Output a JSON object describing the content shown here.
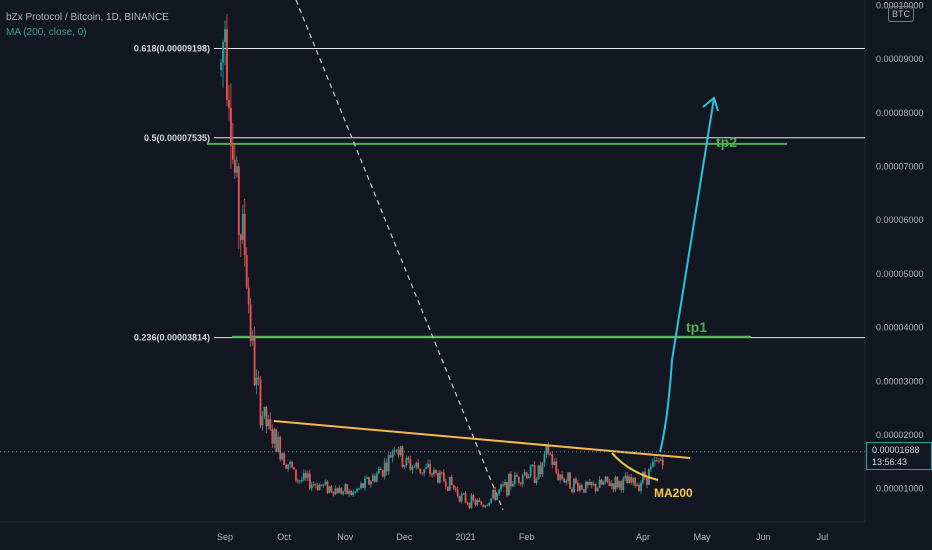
{
  "legend": {
    "symbol_line": "bZx Protocol / Bitcoin, 1D, BINANCE",
    "ma_line": "MA (200, close, 0)"
  },
  "currency_badge": "BTC",
  "last_price": {
    "value": "0.00001688",
    "countdown": "13:56:43"
  },
  "colors": {
    "background": "#131722",
    "up": "#26a69a",
    "down": "#ef5350",
    "fib_line": "#e8e8e8",
    "target_line": "#4caf50",
    "trendline": "#f7b84b",
    "projection": "#26c6da",
    "ma": "#f7c948"
  },
  "chart_data": {
    "type": "candlestick",
    "title": "bZx Protocol / Bitcoin, 1D, BINANCE",
    "y_ticks": [
      "0.00009000",
      "0.00008000",
      "0.00007000",
      "0.00006000",
      "0.00005000",
      "0.00004000",
      "0.00003000",
      "0.00002000",
      "0.00001000"
    ],
    "y_tick_partial_top": "0.00010000",
    "x_ticks": [
      "Sep",
      "Oct",
      "Nov",
      "Dec",
      "2021",
      "Feb",
      "Apr",
      "May",
      "Jun",
      "Jul"
    ],
    "ylim": [
      3.8e-06,
      0.000101
    ],
    "fib_levels": [
      {
        "ratio": 0.618,
        "label": "0.618(0.00009198)",
        "price": 9.198e-05
      },
      {
        "ratio": 0.5,
        "label": "0.5(0.00007535)",
        "price": 7.535e-05
      },
      {
        "ratio": 0.236,
        "label": "0.236(0.00003814)",
        "price": 3.814e-05
      }
    ],
    "targets": [
      {
        "name": "tp2",
        "price": 7.42e-05
      },
      {
        "name": "tp1",
        "price": 3.83e-05
      }
    ],
    "ma_label": "MA200",
    "last_price": 1.688e-05,
    "price_path": [
      {
        "date": "2020-08-30",
        "price": 8.8e-05
      },
      {
        "date": "2020-09-01",
        "price": 9.8e-05
      },
      {
        "date": "2020-09-03",
        "price": 9e-05
      },
      {
        "date": "2020-09-05",
        "price": 7.2e-05
      },
      {
        "date": "2020-09-08",
        "price": 6e-05
      },
      {
        "date": "2020-09-11",
        "price": 5.5e-05
      },
      {
        "date": "2020-09-14",
        "price": 4e-05
      },
      {
        "date": "2020-09-16",
        "price": 3.1e-05
      },
      {
        "date": "2020-09-19",
        "price": 2.5e-05
      },
      {
        "date": "2020-09-24",
        "price": 2e-05
      },
      {
        "date": "2020-09-30",
        "price": 1.7e-05
      },
      {
        "date": "2020-10-07",
        "price": 1.2e-05
      },
      {
        "date": "2020-10-16",
        "price": 1.1e-05
      },
      {
        "date": "2020-10-26",
        "price": 1e-05
      },
      {
        "date": "2020-11-05",
        "price": 9e-06
      },
      {
        "date": "2020-11-15",
        "price": 1.2e-05
      },
      {
        "date": "2020-11-23",
        "price": 1.5e-05
      },
      {
        "date": "2020-11-26",
        "price": 1.9e-05
      },
      {
        "date": "2020-11-30",
        "price": 1.5e-05
      },
      {
        "date": "2020-12-07",
        "price": 1.4e-05
      },
      {
        "date": "2020-12-15",
        "price": 1.3e-05
      },
      {
        "date": "2020-12-24",
        "price": 1.1e-05
      },
      {
        "date": "2020-12-31",
        "price": 8e-06
      },
      {
        "date": "2021-01-10",
        "price": 7e-06
      },
      {
        "date": "2021-01-20",
        "price": 1e-05
      },
      {
        "date": "2021-01-30",
        "price": 1.3e-05
      },
      {
        "date": "2021-02-08",
        "price": 1.3e-05
      },
      {
        "date": "2021-02-12",
        "price": 1.7e-05
      },
      {
        "date": "2021-02-16",
        "price": 1.3e-05
      },
      {
        "date": "2021-02-24",
        "price": 1.1e-05
      },
      {
        "date": "2021-03-05",
        "price": 1e-05
      },
      {
        "date": "2021-03-14",
        "price": 1.1e-05
      },
      {
        "date": "2021-03-22",
        "price": 1.1e-05
      },
      {
        "date": "2021-03-29",
        "price": 1.1e-05
      },
      {
        "date": "2021-04-04",
        "price": 1.3e-05
      },
      {
        "date": "2021-04-09",
        "price": 1.5e-05
      },
      {
        "date": "2021-04-12",
        "price": 1.69e-05
      }
    ]
  }
}
